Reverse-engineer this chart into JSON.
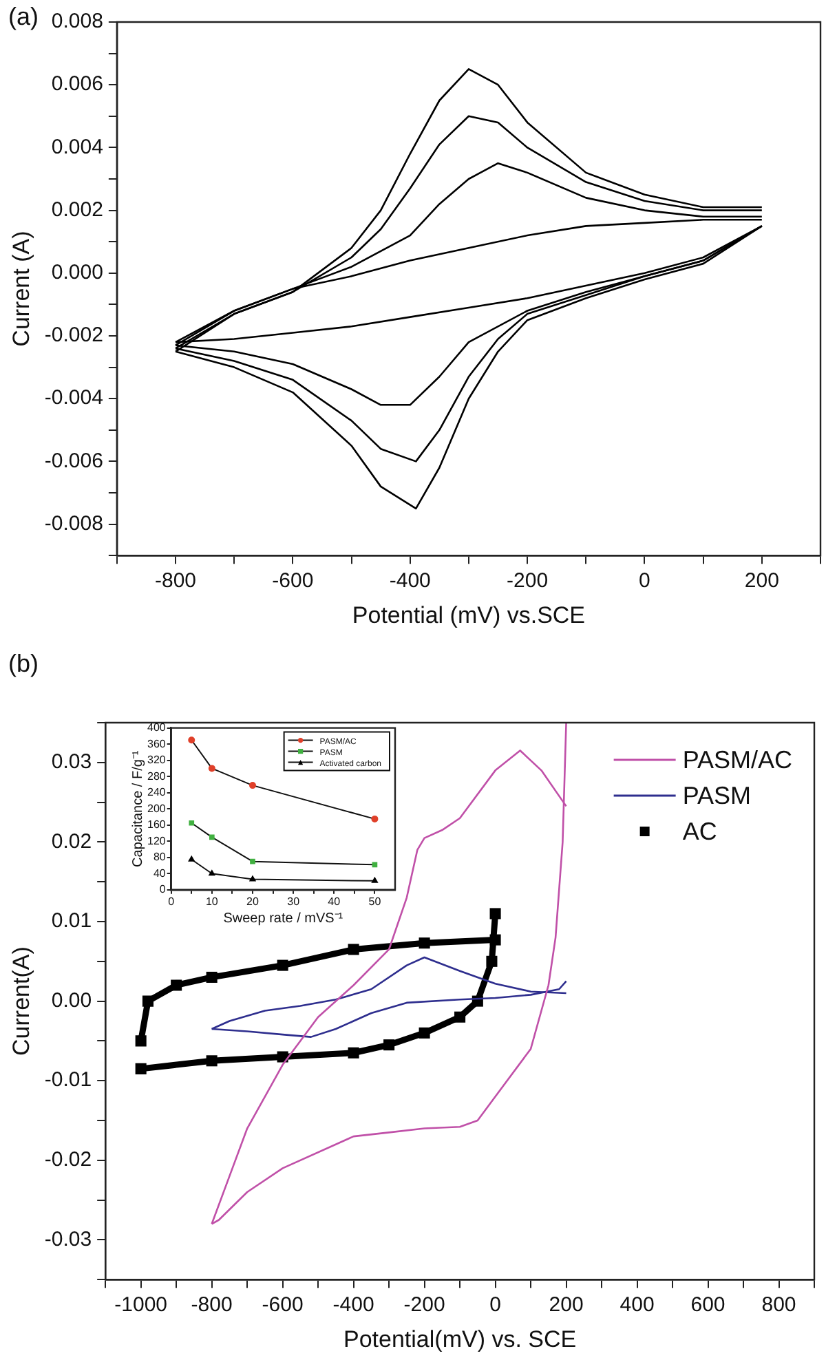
{
  "chart_data": [
    {
      "type": "line",
      "title": "(a)",
      "xlabel": "Potential (mV) vs.SCE",
      "ylabel": "Current (A)",
      "legend": false,
      "xlim": [
        -900,
        300
      ],
      "xticks": [
        {
          "value": -900,
          "label": null
        },
        -800,
        {
          "value": -700,
          "label": null
        },
        -600,
        {
          "value": -500,
          "label": null
        },
        -400,
        {
          "value": -300,
          "label": null
        },
        -200,
        {
          "value": -100,
          "label": null
        },
        0,
        {
          "value": 100,
          "label": null
        },
        200,
        {
          "value": 300,
          "label": null
        }
      ],
      "ylim": [
        -0.009,
        0.008
      ],
      "yticks": [
        {
          "value": -0.009,
          "label": null
        },
        {
          "value": -0.008,
          "label": "-0.008"
        },
        {
          "value": -0.007,
          "label": null
        },
        {
          "value": -0.006,
          "label": "-0.006"
        },
        {
          "value": -0.005,
          "label": null
        },
        {
          "value": -0.004,
          "label": "-0.004"
        },
        {
          "value": -0.003,
          "label": null
        },
        {
          "value": -0.002,
          "label": "-0.002"
        },
        {
          "value": -0.001,
          "label": null
        },
        {
          "value": 0,
          "label": "0.000"
        },
        {
          "value": 0.001,
          "label": null
        },
        {
          "value": 0.002,
          "label": "0.002"
        },
        {
          "value": 0.003,
          "label": null
        },
        {
          "value": 0.004,
          "label": "0.004"
        },
        {
          "value": 0.005,
          "label": null
        },
        {
          "value": 0.006,
          "label": "0.006"
        },
        {
          "value": 0.007,
          "label": null
        },
        {
          "value": 0.008,
          "label": "0.008"
        }
      ],
      "series": [
        {
          "color": "#000000",
          "x": [
            -800,
            -700,
            -600,
            -500,
            -450,
            -400,
            -350,
            -300,
            -250,
            -200,
            -100,
            0,
            100,
            200
          ],
          "values": [
            -0.0025,
            -0.0013,
            -0.0006,
            0.0008,
            0.002,
            0.0038,
            0.0055,
            0.0065,
            0.006,
            0.0048,
            0.0032,
            0.0025,
            0.0021,
            0.0021
          ]
        },
        {
          "color": "#000000",
          "x": [
            -800,
            -700,
            -600,
            -500,
            -450,
            -390,
            -350,
            -300,
            -250,
            -200,
            -100,
            0,
            100,
            200
          ],
          "values": [
            -0.0025,
            -0.003,
            -0.0038,
            -0.0055,
            -0.0068,
            -0.0075,
            -0.0062,
            -0.004,
            -0.0025,
            -0.0015,
            -0.0008,
            -0.0002,
            0.0003,
            0.0015
          ]
        },
        {
          "color": "#000000",
          "x": [
            -800,
            -700,
            -600,
            -500,
            -450,
            -400,
            -350,
            -300,
            -250,
            -200,
            -100,
            0,
            100,
            200
          ],
          "values": [
            -0.0024,
            -0.0013,
            -0.0006,
            0.0005,
            0.0014,
            0.0027,
            0.0041,
            0.005,
            0.0048,
            0.004,
            0.0029,
            0.0023,
            0.002,
            0.002
          ]
        },
        {
          "color": "#000000",
          "x": [
            -800,
            -700,
            -600,
            -500,
            -450,
            -390,
            -350,
            -300,
            -250,
            -200,
            -100,
            0,
            100,
            200
          ],
          "values": [
            -0.0024,
            -0.0028,
            -0.0034,
            -0.0047,
            -0.0056,
            -0.006,
            -0.005,
            -0.0033,
            -0.0021,
            -0.0013,
            -0.0007,
            -0.0001,
            0.0004,
            0.0015
          ]
        },
        {
          "color": "#000000",
          "x": [
            -800,
            -700,
            -600,
            -500,
            -400,
            -350,
            -300,
            -250,
            -200,
            -100,
            0,
            100,
            200
          ],
          "values": [
            -0.0023,
            -0.0012,
            -0.0005,
            0.0002,
            0.0012,
            0.0022,
            0.003,
            0.0035,
            0.0032,
            0.0024,
            0.002,
            0.0018,
            0.0018
          ]
        },
        {
          "color": "#000000",
          "x": [
            -800,
            -700,
            -600,
            -500,
            -450,
            -400,
            -350,
            -300,
            -200,
            -100,
            0,
            100,
            200
          ],
          "values": [
            -0.0023,
            -0.0025,
            -0.0029,
            -0.0037,
            -0.0042,
            -0.0042,
            -0.0033,
            -0.0022,
            -0.0012,
            -0.0006,
            -0.0001,
            0.0004,
            0.0015
          ]
        },
        {
          "color": "#000000",
          "x": [
            -800,
            -700,
            -600,
            -500,
            -400,
            -300,
            -200,
            -100,
            0,
            100,
            200
          ],
          "values": [
            -0.0022,
            -0.0012,
            -0.0005,
            -0.0001,
            0.0004,
            0.0008,
            0.0012,
            0.0015,
            0.0016,
            0.0017,
            0.0017
          ]
        },
        {
          "color": "#000000",
          "x": [
            -800,
            -700,
            -600,
            -500,
            -400,
            -300,
            -200,
            -100,
            0,
            100,
            200
          ],
          "values": [
            -0.0022,
            -0.0021,
            -0.0019,
            -0.0017,
            -0.0014,
            -0.0011,
            -0.0008,
            -0.0004,
            0,
            0.0005,
            0.0015
          ]
        }
      ]
    },
    {
      "type": "line",
      "title": "(b)",
      "xlabel": "Potential(mV) vs. SCE",
      "ylabel": "Current(A)",
      "legend": "top right",
      "xlim": [
        -1100,
        900
      ],
      "xticks": [
        {
          "value": -1100,
          "label": null
        },
        -1000,
        {
          "value": -900,
          "label": null
        },
        -800,
        {
          "value": -700,
          "label": null
        },
        -600,
        {
          "value": -500,
          "label": null
        },
        -400,
        {
          "value": -300,
          "label": null
        },
        -200,
        {
          "value": -100,
          "label": null
        },
        0,
        {
          "value": 100,
          "label": null
        },
        200,
        {
          "value": 300,
          "label": null
        },
        400,
        {
          "value": 500,
          "label": null
        },
        600,
        {
          "value": 700,
          "label": null
        },
        800,
        {
          "value": 900,
          "label": null
        }
      ],
      "ylim": [
        -0.035,
        0.035
      ],
      "yticks": [
        {
          "value": -0.035,
          "label": null
        },
        {
          "value": -0.03,
          "label": "-0.03"
        },
        {
          "value": -0.025,
          "label": null
        },
        {
          "value": -0.02,
          "label": "-0.02"
        },
        {
          "value": -0.015,
          "label": null
        },
        {
          "value": -0.01,
          "label": "-0.01"
        },
        {
          "value": -0.005,
          "label": null
        },
        {
          "value": 0,
          "label": "0.00"
        },
        {
          "value": 0.005,
          "label": null
        },
        {
          "value": 0.01,
          "label": "0.01"
        },
        {
          "value": 0.015,
          "label": null
        },
        {
          "value": 0.02,
          "label": "0.02"
        },
        {
          "value": 0.025,
          "label": null
        },
        {
          "value": 0.03,
          "label": "0.03"
        },
        {
          "value": 0.035,
          "label": null
        }
      ],
      "series": [
        {
          "name": "PASM/AC",
          "color": "#c050a8",
          "marker": "none",
          "x": [
            -800,
            -750,
            -700,
            -600,
            -500,
            -400,
            -300,
            -250,
            -220,
            -200,
            -150,
            -100,
            0,
            70,
            130,
            200
          ],
          "values": [
            -0.028,
            -0.022,
            -0.016,
            -0.008,
            -0.002,
            0.002,
            0.0065,
            0.013,
            0.019,
            0.0205,
            0.0215,
            0.023,
            0.029,
            0.0315,
            0.029,
            0.0245
          ]
        },
        {
          "color": "#c050a8",
          "marker": "none",
          "x": [
            -800,
            -780,
            -700,
            -600,
            -400,
            -300,
            -200,
            -100,
            -50,
            0,
            100,
            150,
            170,
            190,
            200
          ],
          "values": [
            -0.028,
            -0.0275,
            -0.024,
            -0.021,
            -0.017,
            -0.0165,
            -0.016,
            -0.0158,
            -0.015,
            -0.012,
            -0.006,
            0.002,
            0.008,
            0.02,
            0.035
          ]
        },
        {
          "name": "PASM",
          "color": "#2e2e8e",
          "marker": "none",
          "x": [
            -800,
            -700,
            -600,
            -520,
            -450,
            -350,
            -250,
            -100,
            0,
            100,
            180,
            200
          ],
          "values": [
            -0.0035,
            -0.0038,
            -0.0042,
            -0.0045,
            -0.0035,
            -0.0015,
            -0.0002,
            0.0002,
            0.0004,
            0.0008,
            0.0015,
            0.0025
          ]
        },
        {
          "color": "#2e2e8e",
          "marker": "none",
          "x": [
            -800,
            -750,
            -650,
            -550,
            -450,
            -350,
            -250,
            -200,
            -100,
            0,
            100,
            200
          ],
          "values": [
            -0.0035,
            -0.0025,
            -0.0012,
            -0.0006,
            0.0002,
            0.0015,
            0.0045,
            0.0055,
            0.0038,
            0.0022,
            0.0012,
            0.001
          ]
        },
        {
          "name": "AC",
          "color": "#000000",
          "marker": "square",
          "x": [
            -1000,
            -800,
            -600,
            -400,
            -300,
            -200,
            -100,
            -50,
            -10,
            0
          ],
          "values": [
            -0.0085,
            -0.0075,
            -0.007,
            -0.0065,
            -0.0055,
            -0.004,
            -0.002,
            0,
            0.005,
            0.011
          ]
        },
        {
          "color": "#000000",
          "marker": "square",
          "x": [
            -1000,
            -980,
            -900,
            -800,
            -600,
            -400,
            -200,
            0
          ],
          "values": [
            -0.005,
            0,
            0.002,
            0.003,
            0.0045,
            0.0065,
            0.0073,
            0.0077
          ]
        }
      ]
    },
    {
      "type": "line",
      "xlabel": "Sweep rate / mVS⁻¹",
      "ylabel": "Capacitance / F/g⁻¹",
      "legend": "top right",
      "xlim": [
        0,
        55
      ],
      "xticks": [
        0,
        {
          "value": 5,
          "label": null
        },
        10,
        {
          "value": 15,
          "label": null
        },
        20,
        {
          "value": 25,
          "label": null
        },
        30,
        {
          "value": 35,
          "label": null
        },
        40,
        {
          "value": 45,
          "label": null
        },
        50
      ],
      "ylim": [
        0,
        400
      ],
      "yticks": [
        0,
        40,
        80,
        120,
        160,
        200,
        240,
        280,
        320,
        360,
        400
      ],
      "series": [
        {
          "name": "PASM/AC",
          "color": "#e0402a",
          "marker": "circle",
          "x": [
            5,
            10,
            20,
            50
          ],
          "values": [
            370,
            300,
            258,
            175
          ]
        },
        {
          "name": "PASM",
          "color": "#40b040",
          "marker": "square",
          "x": [
            5,
            10,
            20,
            50
          ],
          "values": [
            165,
            130,
            70,
            62
          ]
        },
        {
          "name": "Activated carbon",
          "color": "#000000",
          "marker": "triangle",
          "x": [
            5,
            10,
            20,
            50
          ],
          "values": [
            75,
            40,
            26,
            22
          ]
        }
      ]
    }
  ]
}
